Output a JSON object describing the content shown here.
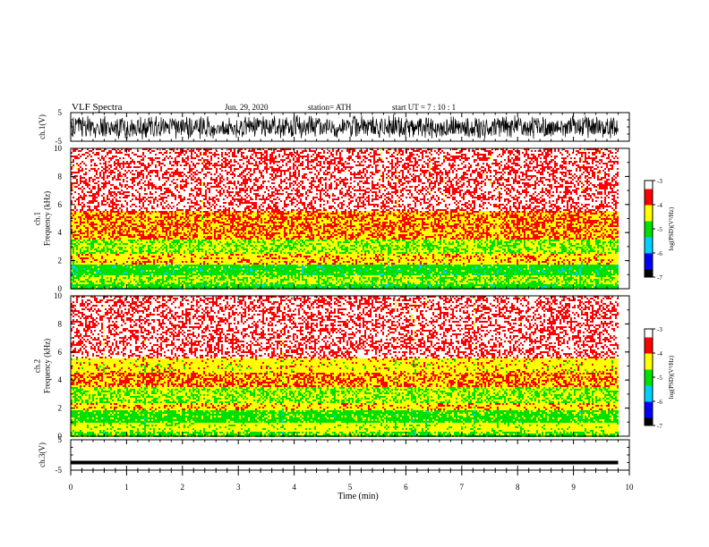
{
  "header": {
    "title": "VLF  Spectra",
    "date": "Jun. 29, 2020",
    "station": "station= ATH",
    "start": "start  UT  =    7  : 10 : 1"
  },
  "chart_data": [
    {
      "type": "line",
      "panel": "ch1-waveform",
      "ylabel": "ch.1(V)",
      "ylim": [
        -5,
        5
      ],
      "yticks": [
        "5",
        "-5"
      ],
      "xlim": [
        0,
        10
      ],
      "x_extent_min": [
        0,
        9.8
      ],
      "amplitude_envelope_v": 4.5
    },
    {
      "type": "heatmap",
      "panel": "ch1-spectrogram",
      "ylabel": "ch.1\nFrequency  (kHz)",
      "ylim": [
        0,
        10
      ],
      "yticks": [
        "0",
        "2",
        "4",
        "6",
        "8",
        "10"
      ],
      "xlim": [
        0,
        10
      ],
      "x_extent_min": [
        0,
        9.8
      ],
      "bands_khz": [
        {
          "from": 0,
          "to": 0.3,
          "level": -5.0
        },
        {
          "from": 0.3,
          "to": 1.0,
          "level": -4.6
        },
        {
          "from": 1.0,
          "to": 1.7,
          "level": -5.0
        },
        {
          "from": 1.7,
          "to": 2.5,
          "level": -4.2
        },
        {
          "from": 2.5,
          "to": 3.5,
          "level": -4.6
        },
        {
          "from": 3.5,
          "to": 5.5,
          "level": -4.0
        },
        {
          "from": 5.5,
          "to": 10,
          "level": -3.3
        }
      ],
      "colorbar": {
        "label": "log(PSD)(V²/Hz)",
        "range": [
          -7,
          -3
        ],
        "ticks": [
          "-3",
          "-4",
          "-5",
          "-6",
          "-7"
        ],
        "colors": [
          "#000000",
          "#0000ff",
          "#00d0ff",
          "#00e000",
          "#ffff00",
          "#ff0000",
          "#ffffff"
        ]
      }
    },
    {
      "type": "heatmap",
      "panel": "ch2-spectrogram",
      "ylabel": "ch.2\nFrequency  (kHz)",
      "ylim": [
        0,
        10
      ],
      "yticks": [
        "0",
        "2",
        "4",
        "6",
        "8",
        "10"
      ],
      "xlim": [
        0,
        10
      ],
      "x_extent_min": [
        0,
        9.8
      ],
      "bands_khz": [
        {
          "from": 0,
          "to": 0.3,
          "level": -4.8
        },
        {
          "from": 0.3,
          "to": 1.0,
          "level": -4.4
        },
        {
          "from": 1.0,
          "to": 1.8,
          "level": -4.9
        },
        {
          "from": 1.8,
          "to": 2.4,
          "level": -4.2
        },
        {
          "from": 2.4,
          "to": 3.5,
          "level": -4.6
        },
        {
          "from": 3.5,
          "to": 4.5,
          "level": -4.0
        },
        {
          "from": 4.5,
          "to": 5.5,
          "level": -4.3
        },
        {
          "from": 5.5,
          "to": 10,
          "level": -3.3
        }
      ],
      "colorbar": {
        "label": "log(PSD)(V²/Hz)",
        "range": [
          -7,
          -3
        ],
        "ticks": [
          "-3",
          "-4",
          "-5",
          "-6",
          "-7"
        ],
        "colors": [
          "#000000",
          "#0000ff",
          "#00d0ff",
          "#00e000",
          "#ffff00",
          "#ff0000",
          "#ffffff"
        ]
      }
    },
    {
      "type": "line",
      "panel": "ch3-waveform",
      "ylabel": "ch.3(V)",
      "ylim": [
        -5,
        5
      ],
      "yticks": [
        "5",
        "-5"
      ],
      "xlim": [
        0,
        10
      ],
      "x_extent_min": [
        0,
        9.8
      ],
      "level_v": -2.5,
      "xlabel": "Time  (min)",
      "xticks": [
        "0",
        "1",
        "2",
        "3",
        "4",
        "5",
        "6",
        "7",
        "8",
        "9",
        "10"
      ]
    }
  ]
}
